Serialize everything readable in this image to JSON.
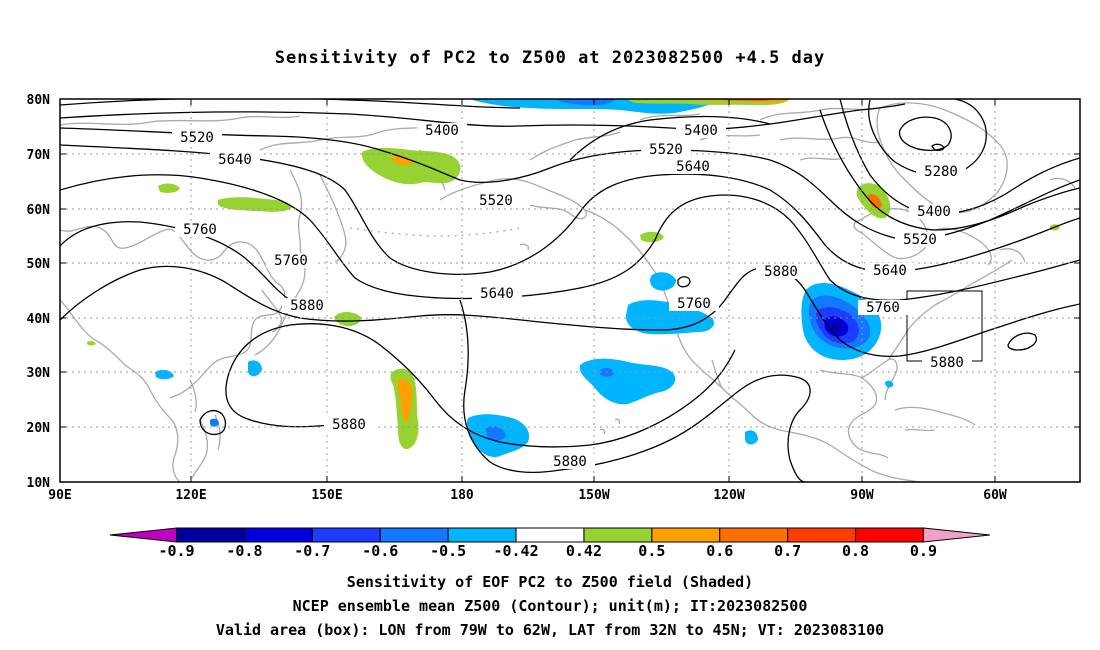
{
  "title": "Sensitivity of PC2 to Z500 at 2023082500 +4.5 day",
  "axes": {
    "lat_labels": [
      "80N",
      "70N",
      "60N",
      "50N",
      "40N",
      "30N",
      "20N",
      "10N"
    ],
    "lon_labels": [
      "90E",
      "120E",
      "150E",
      "180",
      "150W",
      "120W",
      "90W",
      "60W"
    ]
  },
  "contour_labels": {
    "c5520a": "5520",
    "c5640a": "5640",
    "c5400a": "5400",
    "c5400b": "5400",
    "c5520b": "5520",
    "c5640b": "5640",
    "c5520c": "5520",
    "c5760a": "5760",
    "c5760b": "5760",
    "c5880a": "5880",
    "c5640c": "5640",
    "c5880b": "5880",
    "c5760c": "5760",
    "c5280": "5280",
    "c5400c": "5400",
    "c5520d": "5520",
    "c5640d": "5640",
    "c5760d": "5760",
    "c5880c": "5880",
    "c5880d": "5880",
    "c5880e": "5880"
  },
  "colorbar": {
    "labels": [
      "-0.9",
      "-0.8",
      "-0.7",
      "-0.6",
      "-0.5",
      "-0.42",
      "0.42",
      "0.5",
      "0.6",
      "0.7",
      "0.8",
      "0.9"
    ],
    "colors": [
      "#c000c0",
      "#0000a0",
      "#0000dc",
      "#1e3cff",
      "#1478ff",
      "#00b4ff",
      "#ffffff",
      "#96d232",
      "#ffa000",
      "#ff6e00",
      "#ff3c00",
      "#ff0000",
      "#f2a0c8"
    ]
  },
  "captions": {
    "line1": "Sensitivity of EOF PC2 to Z500 field (Shaded)",
    "line2": "NCEP ensemble mean Z500 (Contour); unit(m); IT:2023082500",
    "line3": "Valid area (box): LON from 79W to 62W, LAT from 32N to 45N; VT: 2023083100"
  }
}
